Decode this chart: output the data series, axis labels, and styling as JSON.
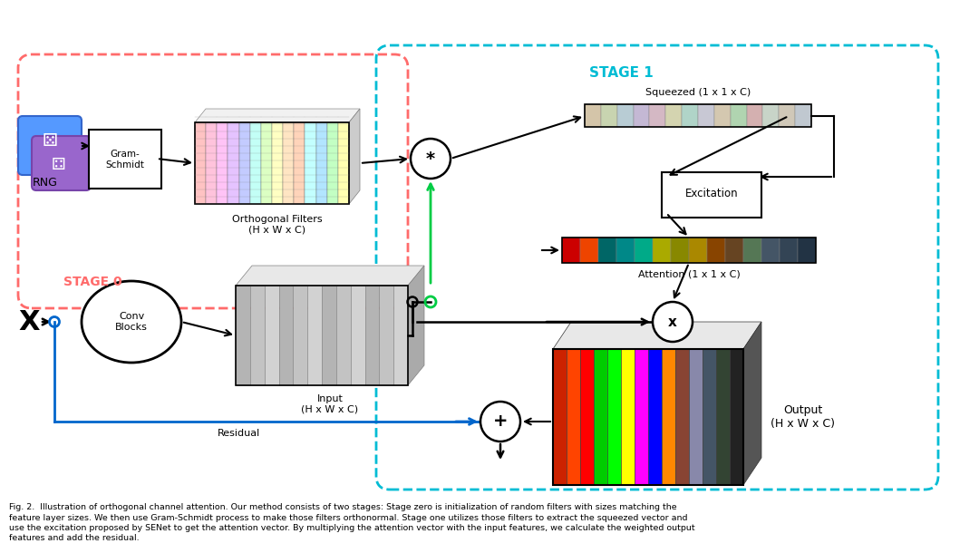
{
  "title": "",
  "caption": "Fig. 2.  Illustration of orthogonal channel attention. Our method consists of two stages: Stage zero is initialization of random filters with sizes matching the\nfeature layer sizes. We then use Gram-Schmidt process to make those filters orthonormal. Stage one utilizes those filters to extract the squeezed vector and\nuse the excitation proposed by SENet to get the attention vector. By multiplying the attention vector with the input features, we calculate the weighted output\nfeatures and add the residual.",
  "stage0_label": "STAGE 0",
  "stage1_label": "STAGE 1",
  "rng_label": "RNG",
  "gram_schmidt_label": "Gram-\nSchmidt",
  "orthogonal_filters_label": "Orthogonal Filters\n(H x W x C)",
  "input_label": "Input\n(H x W x C)",
  "conv_blocks_label": "Conv\nBlocks",
  "squeezed_label": "Squeezed (1 x 1 x C)",
  "excitation_label": "Excitation",
  "attention_label": "Attention (1 x 1 x C)",
  "output_label": "Output\n(H x W x C)",
  "residual_label": "Residual",
  "bg_color": "#ffffff",
  "stage0_color": "#ff6b6b",
  "stage1_color": "#00bcd4",
  "orthogonal_colors": [
    "#ff9999",
    "#ffb3b3",
    "#ff99cc",
    "#ffccff",
    "#cc99ff",
    "#99ccff",
    "#99ffcc",
    "#ccff99",
    "#ffff99",
    "#ffcc99",
    "#ff9966",
    "#99ffff",
    "#66ccff",
    "#99ff99",
    "#ffff66",
    "#ffcc66"
  ],
  "squeezed_colors": [
    "#d4c5a9",
    "#c8d4b0",
    "#b0c8d4",
    "#c8b0d4",
    "#d4b0c8",
    "#d4d4b0",
    "#b0d4c8",
    "#c8c8d4",
    "#d4c8b0",
    "#b0d4b0",
    "#d4b0b0",
    "#c8d4c8"
  ],
  "attention_colors": [
    "#cc0000",
    "#cc4400",
    "#006666",
    "#008888",
    "#00aa88",
    "#aaaa00",
    "#888800",
    "#666633",
    "#884400",
    "#664422",
    "#557755",
    "#445566",
    "#334455"
  ],
  "output_colors": [
    "#cc2200",
    "#ff4400",
    "#ff0000",
    "#00cc00",
    "#00ff00",
    "#ffff00",
    "#ff00ff",
    "#0000ff",
    "#ff8800",
    "#884400",
    "#8888aa",
    "#445566",
    "#334433",
    "#222222"
  ],
  "arrow_color": "#000000",
  "blue_arrow_color": "#0066cc",
  "green_arrow_color": "#00cc44",
  "purple_arrow_color": "#9966cc"
}
